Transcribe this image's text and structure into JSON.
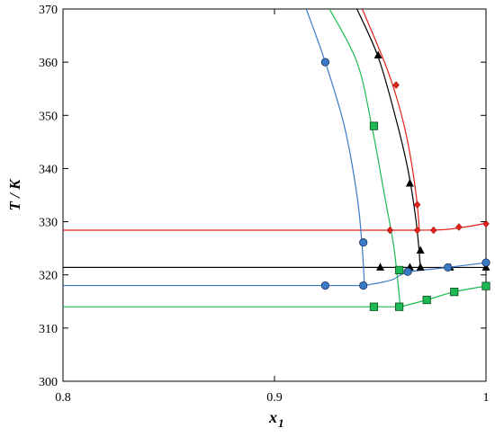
{
  "chart_data": {
    "type": "scatter",
    "xlabel": "x",
    "xlabel_sub": "1",
    "ylabel": "T / K",
    "xlim": [
      0.8,
      1.0
    ],
    "ylim": [
      300,
      370
    ],
    "x_ticks": [
      "0.8",
      "0.9",
      "1"
    ],
    "y_ticks": [
      "300",
      "310",
      "320",
      "330",
      "340",
      "350",
      "360",
      "370"
    ],
    "grid": false,
    "legend": "none",
    "series": [
      {
        "color": "#e32119",
        "marker": "diamond",
        "points": [
          [
            0.9546,
            328.4
          ],
          [
            0.9675,
            328.4
          ],
          [
            0.9752,
            328.4
          ],
          [
            0.9872,
            329.0
          ],
          [
            1.0,
            329.6
          ],
          [
            0.9675,
            333.2
          ],
          [
            0.9575,
            355.7
          ]
        ],
        "curve_upper": [
          [
            0.9415,
            370
          ],
          [
            0.952,
            360
          ],
          [
            0.958,
            353
          ],
          [
            0.963,
            345
          ],
          [
            0.967,
            335
          ],
          [
            0.9685,
            328.4
          ]
        ],
        "eutectic_T": 328.4,
        "liquidus_right": [
          [
            0.9685,
            328.4
          ],
          [
            0.98,
            328.5
          ],
          [
            0.99,
            329.0
          ],
          [
            1.0,
            329.7
          ]
        ]
      },
      {
        "color": "#000000",
        "marker": "triangle",
        "points": [
          [
            0.95,
            321.4
          ],
          [
            0.964,
            321.4
          ],
          [
            0.969,
            321.4
          ],
          [
            0.983,
            321.4
          ],
          [
            1.0,
            321.4
          ],
          [
            0.969,
            324.6
          ],
          [
            0.964,
            337.2
          ],
          [
            0.949,
            361.3
          ]
        ],
        "curve_upper": [
          [
            0.939,
            370
          ],
          [
            0.949,
            361
          ],
          [
            0.957,
            350
          ],
          [
            0.963,
            340
          ],
          [
            0.967,
            330
          ],
          [
            0.969,
            321.4
          ]
        ],
        "eutectic_T": 321.4
      },
      {
        "color": "#3a7bc8",
        "marker": "circle",
        "points": [
          [
            0.924,
            318.0
          ],
          [
            0.942,
            318.0
          ],
          [
            0.942,
            326.1
          ],
          [
            0.924,
            360.0
          ],
          [
            0.963,
            320.6
          ],
          [
            0.982,
            321.4
          ],
          [
            1.0,
            322.3
          ]
        ],
        "curve_upper": [
          [
            0.915,
            370
          ],
          [
            0.924,
            360
          ],
          [
            0.933,
            348
          ],
          [
            0.939,
            335
          ],
          [
            0.9415,
            325
          ],
          [
            0.9425,
            318.0
          ]
        ],
        "eutectic_T": 318.0,
        "liquidus_right": [
          [
            0.9425,
            318.0
          ],
          [
            0.955,
            319.0
          ],
          [
            0.963,
            320.5
          ],
          [
            0.982,
            321.4
          ],
          [
            1.0,
            322.3
          ]
        ]
      },
      {
        "color": "#1db954",
        "marker": "square",
        "points": [
          [
            0.947,
            314.0
          ],
          [
            0.959,
            314.0
          ],
          [
            0.959,
            320.9
          ],
          [
            0.947,
            348.0
          ],
          [
            0.972,
            315.3
          ],
          [
            0.985,
            316.8
          ],
          [
            1.0,
            317.9
          ]
        ],
        "curve_upper": [
          [
            0.926,
            370
          ],
          [
            0.939,
            360
          ],
          [
            0.946,
            348
          ],
          [
            0.952,
            335
          ],
          [
            0.9565,
            325
          ],
          [
            0.9595,
            314.0
          ]
        ],
        "eutectic_T": 314.0,
        "liquidus_right": [
          [
            0.9595,
            314.0
          ],
          [
            0.972,
            315.3
          ],
          [
            0.985,
            316.8
          ],
          [
            1.0,
            317.9
          ]
        ]
      }
    ]
  }
}
